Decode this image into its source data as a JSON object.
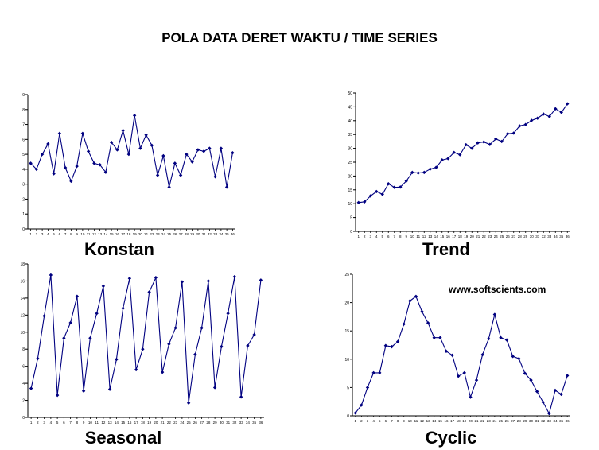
{
  "title": "POLA DATA DERET WAKTU / TIME SERIES",
  "watermark": "www.softscients.com",
  "line_color": "#000080",
  "chart_data": [
    {
      "type": "line",
      "label": "Konstan",
      "categories": [
        "1",
        "2",
        "3",
        "4",
        "5",
        "6",
        "7",
        "8",
        "9",
        "10",
        "11",
        "12",
        "13",
        "14",
        "15",
        "16",
        "17",
        "18",
        "19",
        "20",
        "21",
        "22",
        "23",
        "24",
        "25",
        "26",
        "27",
        "28",
        "29",
        "30",
        "31",
        "32",
        "33",
        "34",
        "35",
        "36"
      ],
      "ylim": [
        0,
        9
      ],
      "yticks": [
        0,
        1,
        2,
        3,
        4,
        5,
        6,
        7,
        8,
        9
      ],
      "values": [
        4.4,
        4.0,
        5.0,
        5.7,
        3.7,
        6.4,
        4.1,
        3.2,
        4.2,
        6.4,
        5.2,
        4.4,
        4.3,
        3.8,
        5.8,
        5.3,
        6.6,
        5.0,
        7.6,
        5.4,
        6.3,
        5.6,
        3.6,
        4.9,
        2.8,
        4.4,
        3.6,
        5.0,
        4.5,
        5.3,
        5.2,
        5.4,
        3.5,
        5.4,
        2.8,
        5.1
      ],
      "grid": false
    },
    {
      "type": "line",
      "label": "Trend",
      "categories": [
        "1",
        "2",
        "3",
        "4",
        "5",
        "6",
        "7",
        "8",
        "9",
        "10",
        "11",
        "12",
        "13",
        "14",
        "15",
        "16",
        "17",
        "18",
        "19",
        "20",
        "21",
        "22",
        "23",
        "24",
        "25",
        "26",
        "27",
        "28",
        "29",
        "30",
        "31",
        "32",
        "33",
        "34",
        "35",
        "36"
      ],
      "ylim": [
        0,
        50
      ],
      "yticks": [
        0,
        5,
        10,
        15,
        20,
        25,
        30,
        35,
        40,
        45,
        50
      ],
      "values": [
        10.4,
        10.7,
        12.8,
        14.4,
        13.4,
        17.2,
        15.9,
        16.0,
        18.2,
        21.3,
        21.1,
        21.3,
        22.5,
        23.1,
        25.8,
        26.3,
        28.5,
        27.7,
        31.3,
        30.0,
        32.0,
        32.3,
        31.4,
        33.4,
        32.5,
        35.3,
        35.5,
        38.1,
        38.6,
        40.1,
        40.9,
        42.4,
        41.5,
        44.3,
        43.0,
        46.1
      ],
      "grid": false
    },
    {
      "type": "line",
      "label": "Seasonal",
      "categories": [
        "1",
        "2",
        "3",
        "4",
        "5",
        "6",
        "7",
        "8",
        "9",
        "10",
        "11",
        "12",
        "13",
        "14",
        "15",
        "16",
        "17",
        "18",
        "19",
        "20",
        "21",
        "22",
        "23",
        "24",
        "25",
        "26",
        "27",
        "28",
        "29",
        "30",
        "31",
        "32",
        "33",
        "34",
        "35",
        "36"
      ],
      "ylim": [
        0,
        18
      ],
      "yticks": [
        0,
        2,
        4,
        6,
        8,
        10,
        12,
        14,
        16,
        18
      ],
      "values": [
        3.4,
        6.9,
        11.9,
        16.7,
        2.6,
        9.3,
        11.1,
        14.2,
        3.1,
        9.3,
        12.2,
        15.4,
        3.3,
        6.8,
        12.8,
        16.3,
        5.6,
        8.0,
        14.7,
        16.4,
        5.3,
        8.6,
        10.5,
        15.9,
        1.7,
        7.4,
        10.5,
        16.0,
        3.5,
        8.3,
        12.2,
        16.5,
        2.4,
        8.4,
        9.7,
        16.1
      ],
      "grid": false
    },
    {
      "type": "line",
      "label": "Cyclic",
      "categories": [
        "1",
        "2",
        "3",
        "4",
        "5",
        "6",
        "7",
        "8",
        "9",
        "10",
        "11",
        "12",
        "13",
        "14",
        "15",
        "16",
        "17",
        "18",
        "19",
        "20",
        "21",
        "22",
        "23",
        "24",
        "25",
        "26",
        "27",
        "28",
        "29",
        "30",
        "31",
        "32",
        "33",
        "34",
        "35",
        "36"
      ],
      "ylim": [
        0,
        25
      ],
      "yticks": [
        0,
        5,
        10,
        15,
        20,
        25
      ],
      "values": [
        0.5,
        1.9,
        5.0,
        7.6,
        7.6,
        12.4,
        12.2,
        13.1,
        16.2,
        20.3,
        21.1,
        18.4,
        16.4,
        13.8,
        13.8,
        11.4,
        10.7,
        7.0,
        7.6,
        3.3,
        6.3,
        10.8,
        13.6,
        17.9,
        13.8,
        13.4,
        10.5,
        10.1,
        7.5,
        6.3,
        4.3,
        2.4,
        0.4,
        4.5,
        3.8,
        7.1
      ],
      "grid": false
    }
  ]
}
